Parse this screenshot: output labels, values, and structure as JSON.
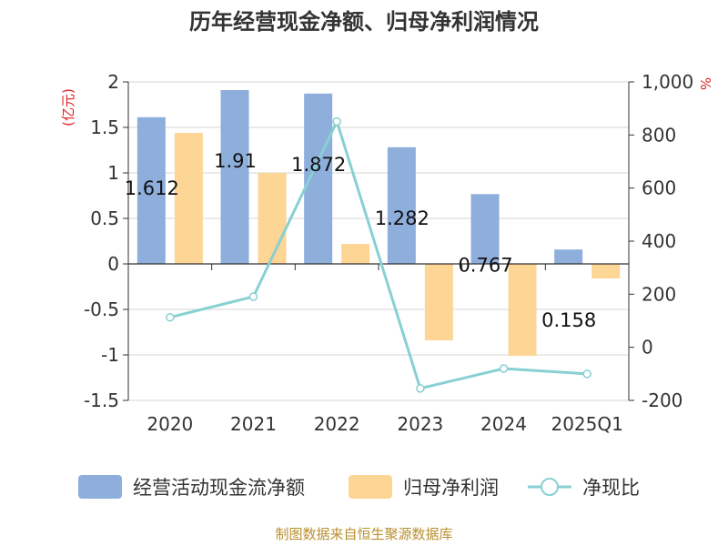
{
  "chart_data": {
    "type": "bar",
    "title": "历年经营现金净额、归母净利润情况",
    "categories": [
      "2020",
      "2021",
      "2022",
      "2023",
      "2024",
      "2025Q1"
    ],
    "series": [
      {
        "name": "经营活动现金流净额",
        "type": "bar",
        "axis": "left",
        "color": "#8eaedc",
        "values": [
          1.612,
          1.91,
          1.872,
          1.282,
          0.767,
          0.158
        ],
        "labels": [
          "1.612",
          "1.91",
          "1.872",
          "1.282",
          "0.767",
          "0.158"
        ]
      },
      {
        "name": "归母净利润",
        "type": "bar",
        "axis": "left",
        "color": "#fdd595",
        "values": [
          1.44,
          1.0,
          0.22,
          -0.84,
          -1.01,
          -0.16
        ]
      },
      {
        "name": "净现比",
        "type": "line",
        "axis": "right",
        "color": "#88d0d3",
        "values": [
          113,
          191,
          851,
          -155,
          -80,
          -100
        ]
      }
    ],
    "left_axis": {
      "unit": "(亿元)",
      "ylim": [
        -1.5,
        2
      ],
      "ticks": [
        2,
        1.5,
        1,
        0.5,
        0,
        -0.5,
        -1,
        -1.5
      ],
      "tick_labels": [
        "2",
        "1.5",
        "1",
        "0.5",
        "0",
        "-0.5",
        "-1",
        "-1.5"
      ]
    },
    "right_axis": {
      "unit": "%",
      "ylim": [
        -200,
        1000
      ],
      "ticks": [
        1000,
        800,
        600,
        400,
        200,
        0,
        -200
      ],
      "tick_labels": [
        "1,000",
        "800",
        "600",
        "400",
        "200",
        "0",
        "-200"
      ]
    },
    "grid": true,
    "legend": {
      "position": "bottom"
    },
    "source": "制图数据来自恒生聚源数据库"
  }
}
